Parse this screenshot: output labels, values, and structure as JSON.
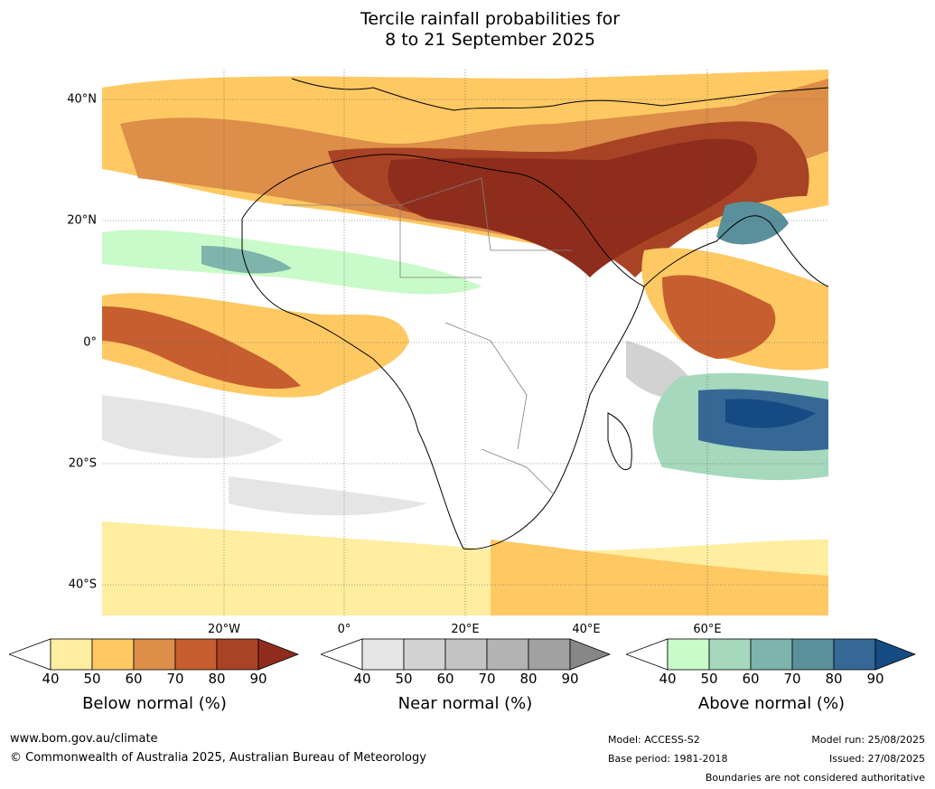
{
  "title": {
    "line1": "Tercile rainfall probabilities for",
    "line2": "8 to 21 September 2025"
  },
  "map": {
    "lat_labels": [
      "40°N",
      "20°N",
      "0°",
      "20°S",
      "40°S"
    ],
    "lon_labels": [
      "20°W",
      "0°",
      "20°E",
      "40°E",
      "60°E"
    ],
    "ocean_color": "#ffffff",
    "land_outline_color": "#000000",
    "border_color": "#808080"
  },
  "legends": [
    {
      "name": "below",
      "title": "Below normal (%)",
      "ticks": [
        "40",
        "50",
        "60",
        "70",
        "80",
        "90"
      ],
      "colors": [
        "#ffeda0",
        "#fec863",
        "#dd8e48",
        "#c75e2f",
        "#a84325",
        "#8e2d1c"
      ]
    },
    {
      "name": "near",
      "title": "Near normal (%)",
      "ticks": [
        "40",
        "50",
        "60",
        "70",
        "80",
        "90"
      ],
      "colors": [
        "#e5e5e5",
        "#d2d2d2",
        "#c3c3c3",
        "#b3b3b3",
        "#a1a1a1",
        "#878787"
      ]
    },
    {
      "name": "above",
      "title": "Above normal (%)",
      "ticks": [
        "40",
        "50",
        "60",
        "70",
        "80",
        "90"
      ],
      "colors": [
        "#c9fac9",
        "#a5d8bc",
        "#7db4ab",
        "#5a8f9c",
        "#366896",
        "#164a82"
      ]
    }
  ],
  "footer": {
    "website": "www.bom.gov.au/climate",
    "copyright": "© Commonwealth of Australia 2025, Australian Bureau of Meteorology",
    "model": "Model: ACCESS-S2",
    "base_period": "Base period: 1981-2018",
    "model_run": "Model run: 25/08/2025",
    "issued": "Issued: 27/08/2025",
    "disclaimer": "Boundaries are not considered authoritative"
  }
}
